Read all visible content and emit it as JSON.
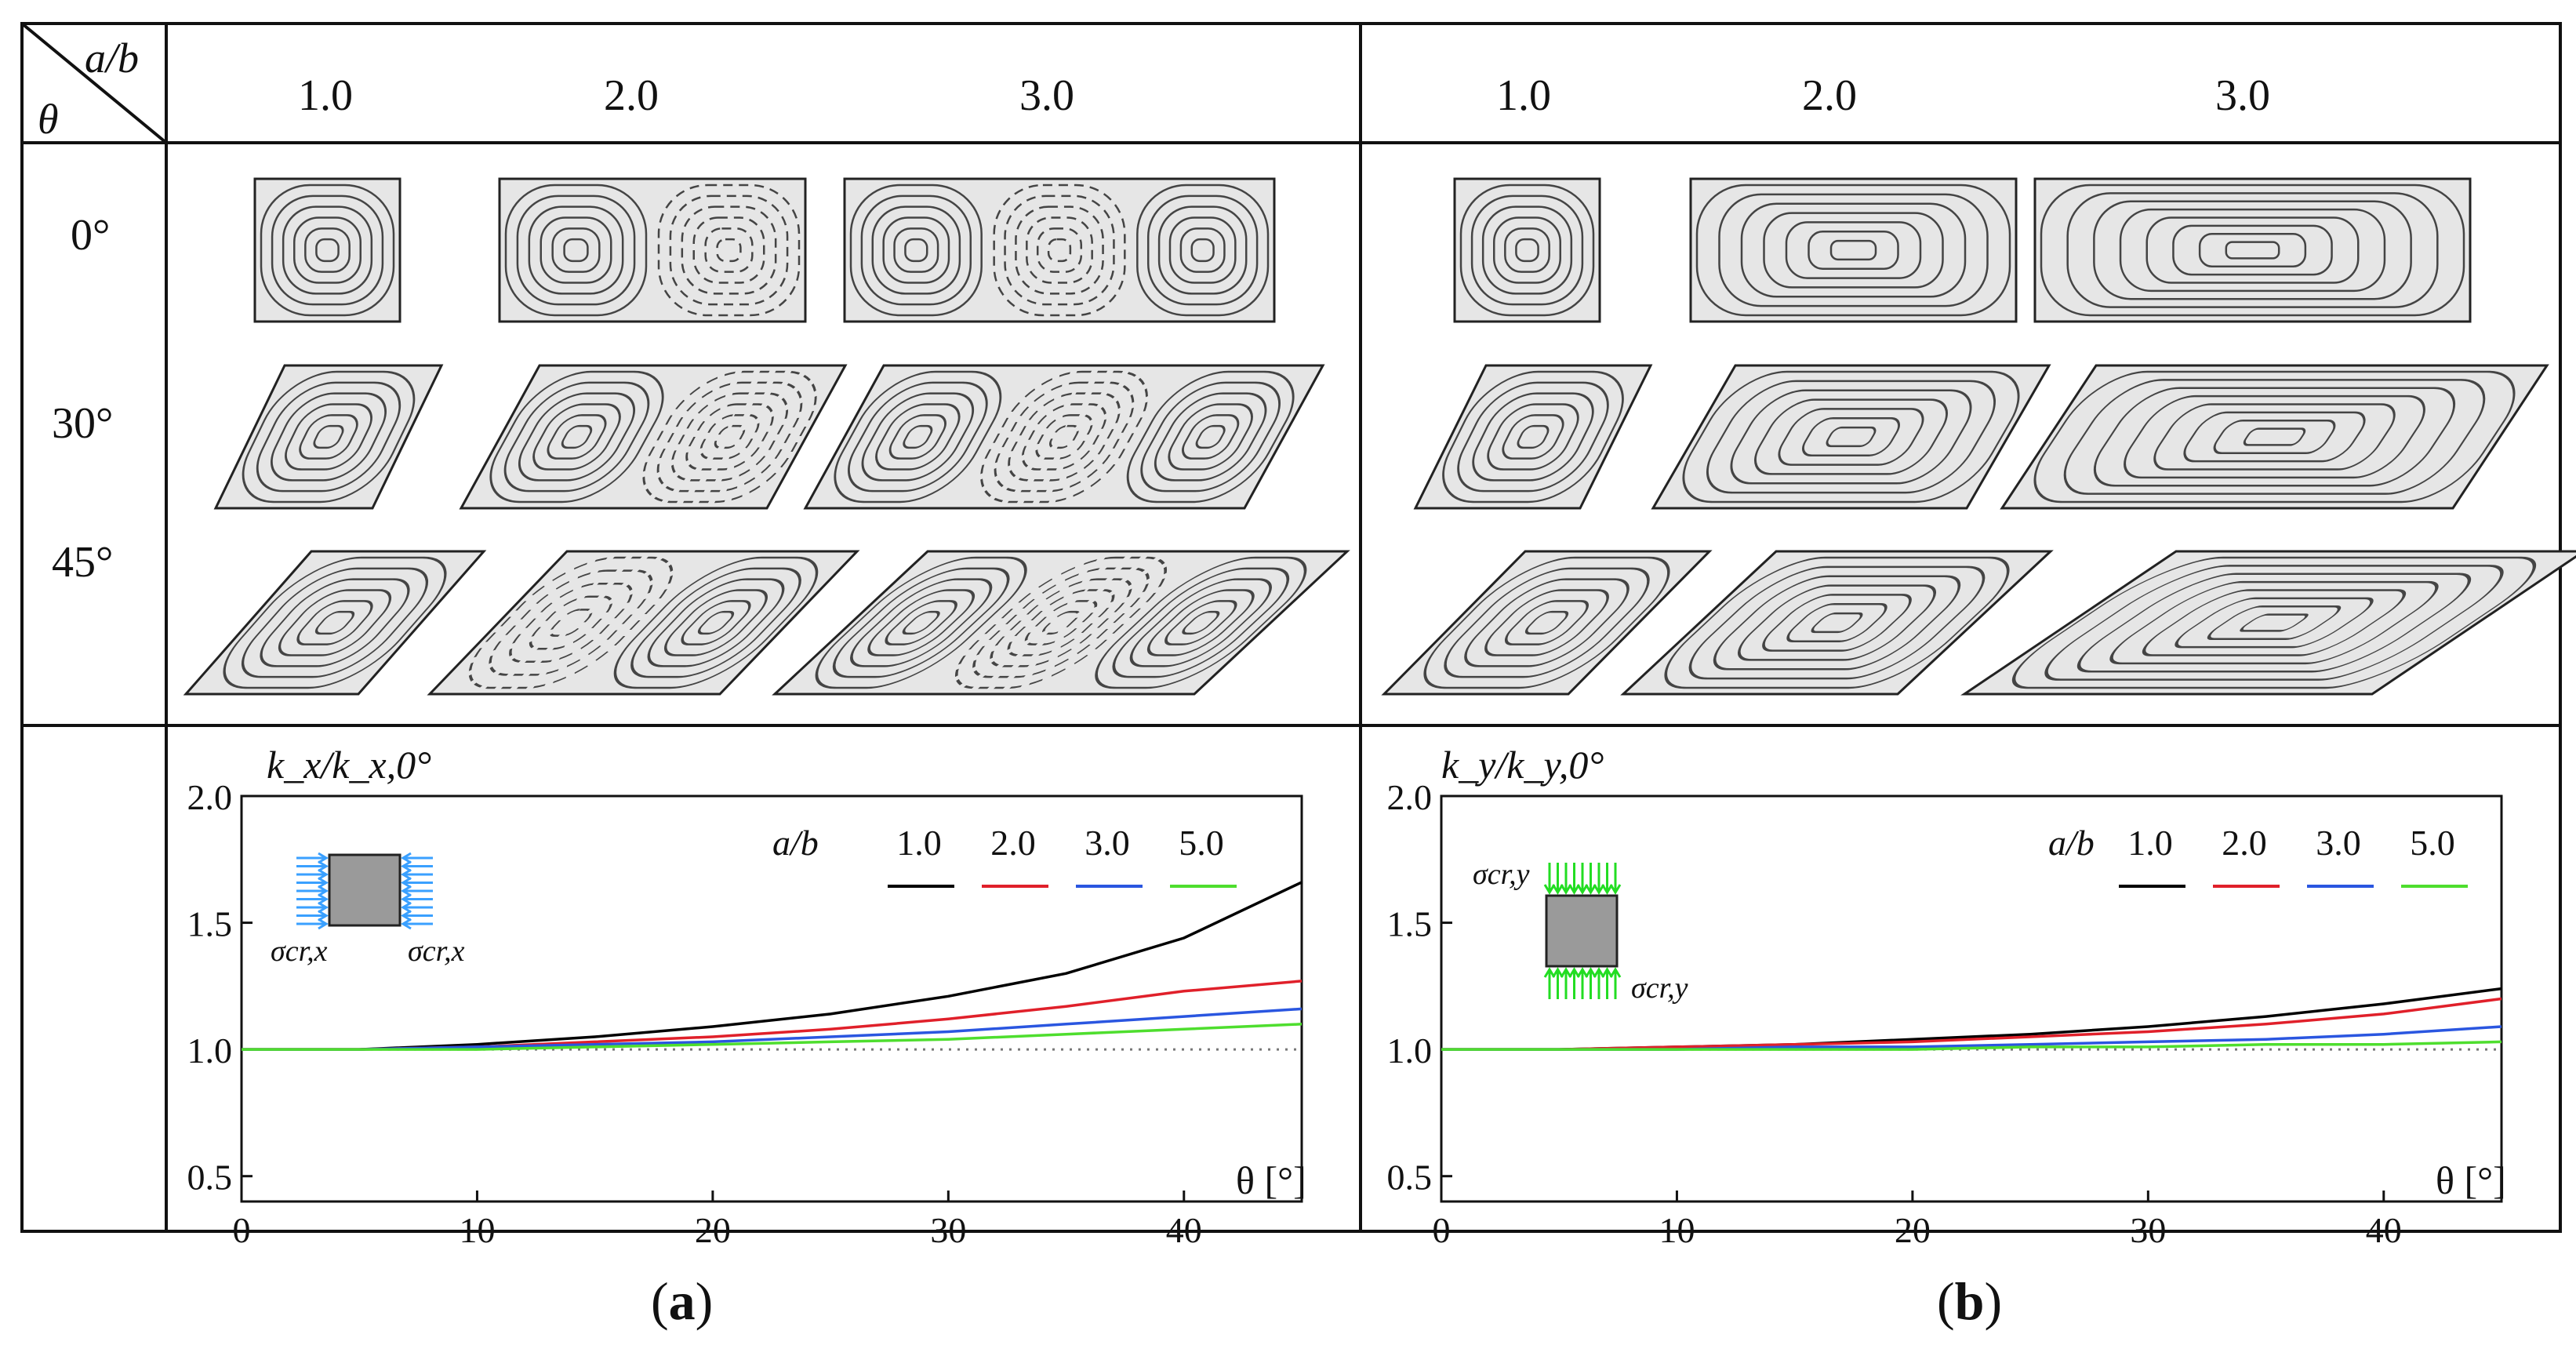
{
  "header": {
    "corner_top": "a/b",
    "corner_bottom": "θ"
  },
  "ratios": [
    "1.0",
    "2.0",
    "3.0"
  ],
  "angles": [
    "0°",
    "30°",
    "45°"
  ],
  "panels": [
    {
      "label_letter": "a",
      "ylabel": "k_x/k_x,0°",
      "xlabel": "θ [°]",
      "inset_left_label": "σcr,x",
      "inset_right_label": "σcr,x"
    },
    {
      "label_letter": "b",
      "ylabel": "k_y/k_y,0°",
      "xlabel": "θ [°]",
      "inset_left_label": "σcr,y",
      "inset_right_label": "σcr,y"
    }
  ],
  "colors": {
    "ab_1": "#000000",
    "ab_2": "#e0202a",
    "ab_3": "#2a56e0",
    "ab_5": "#4ede2e",
    "plate_fill": "#e6e6e6",
    "arrow_a": "#3aa0ff",
    "arrow_b": "#22dd22"
  },
  "chart_data": [
    {
      "type": "line",
      "ylabel": "k_x/k_x,0°",
      "xlabel": "θ [°]",
      "xlim": [
        0,
        45
      ],
      "ylim": [
        0.4,
        2.0
      ],
      "xticks": [
        "0",
        "10",
        "20",
        "30",
        "40"
      ],
      "yticks": [
        "0.5",
        "1.0",
        "1.5",
        "2.0"
      ],
      "legend_title": "a/b",
      "grid": false,
      "x": [
        0,
        5,
        10,
        15,
        20,
        25,
        30,
        35,
        40,
        45
      ],
      "series": [
        {
          "name": "1.0",
          "color": "#000000",
          "values": [
            1.0,
            1.0,
            1.02,
            1.05,
            1.09,
            1.14,
            1.21,
            1.3,
            1.44,
            1.66
          ]
        },
        {
          "name": "2.0",
          "color": "#e0202a",
          "values": [
            1.0,
            1.0,
            1.01,
            1.03,
            1.05,
            1.08,
            1.12,
            1.17,
            1.23,
            1.27
          ]
        },
        {
          "name": "3.0",
          "color": "#2a56e0",
          "values": [
            1.0,
            1.0,
            1.01,
            1.02,
            1.03,
            1.05,
            1.07,
            1.1,
            1.13,
            1.16
          ]
        },
        {
          "name": "5.0",
          "color": "#4ede2e",
          "values": [
            1.0,
            1.0,
            1.0,
            1.01,
            1.02,
            1.03,
            1.04,
            1.06,
            1.08,
            1.1
          ]
        }
      ]
    },
    {
      "type": "line",
      "ylabel": "k_y/k_y,0°",
      "xlabel": "θ [°]",
      "xlim": [
        0,
        45
      ],
      "ylim": [
        0.4,
        2.0
      ],
      "xticks": [
        "0",
        "10",
        "20",
        "30",
        "40"
      ],
      "yticks": [
        "0.5",
        "1.0",
        "1.5",
        "2.0"
      ],
      "legend_title": "a/b",
      "grid": false,
      "x": [
        0,
        5,
        10,
        15,
        20,
        25,
        30,
        35,
        40,
        45
      ],
      "series": [
        {
          "name": "1.0",
          "color": "#000000",
          "values": [
            1.0,
            1.0,
            1.01,
            1.02,
            1.04,
            1.06,
            1.09,
            1.13,
            1.18,
            1.24
          ]
        },
        {
          "name": "2.0",
          "color": "#e0202a",
          "values": [
            1.0,
            1.0,
            1.01,
            1.02,
            1.03,
            1.05,
            1.07,
            1.1,
            1.14,
            1.2
          ]
        },
        {
          "name": "3.0",
          "color": "#2a56e0",
          "values": [
            1.0,
            1.0,
            1.0,
            1.01,
            1.01,
            1.02,
            1.03,
            1.04,
            1.06,
            1.09
          ]
        },
        {
          "name": "5.0",
          "color": "#4ede2e",
          "values": [
            1.0,
            1.0,
            1.0,
            1.0,
            1.0,
            1.01,
            1.01,
            1.02,
            1.02,
            1.03
          ]
        }
      ]
    }
  ]
}
